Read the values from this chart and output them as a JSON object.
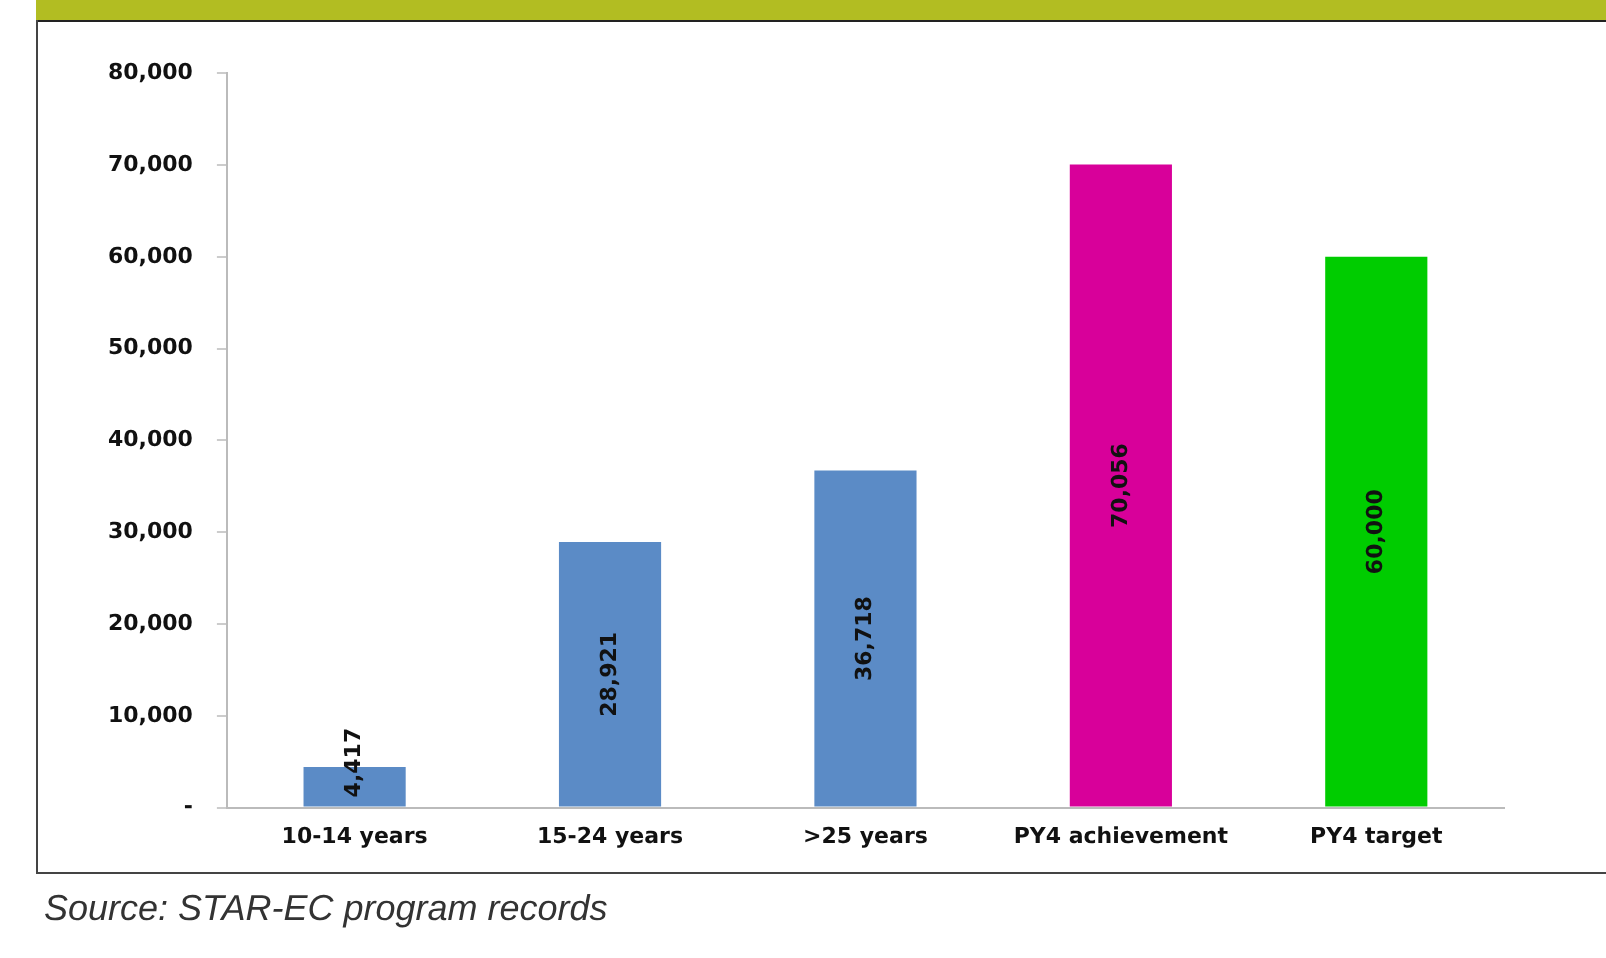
{
  "chart_data": {
    "type": "bar",
    "categories": [
      "10-14 years",
      "15-24 years",
      ">25 years",
      "PY4 achievement",
      "PY4 target"
    ],
    "values": [
      4417,
      28921,
      36718,
      70056,
      60000
    ],
    "colors": [
      "#5b8bc6",
      "#5b8bc6",
      "#5b8bc6",
      "#d8009a",
      "#00cc00"
    ],
    "value_labels": [
      "4,417",
      "28,921",
      "36,718",
      "70,056",
      "60,000"
    ],
    "ylim": [
      0,
      80000
    ],
    "yticks": [
      {
        "value": 0,
        "label": "-"
      },
      {
        "value": 10000,
        "label": "10,000"
      },
      {
        "value": 20000,
        "label": "20,000"
      },
      {
        "value": 30000,
        "label": "30,000"
      },
      {
        "value": 40000,
        "label": "40,000"
      },
      {
        "value": 50000,
        "label": "50,000"
      },
      {
        "value": 60000,
        "label": "60,000"
      },
      {
        "value": 70000,
        "label": "70,000"
      },
      {
        "value": 80000,
        "label": "80,000"
      }
    ],
    "grid": false,
    "legend": false,
    "annotations": [
      "Source: STAR-EC program records"
    ]
  }
}
